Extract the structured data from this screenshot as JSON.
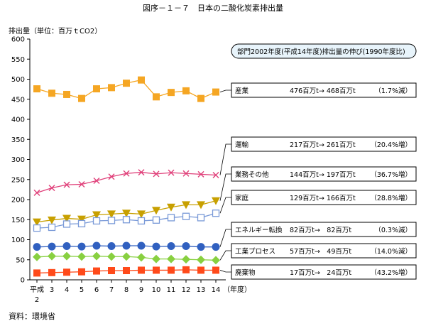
{
  "figure_title": "図序－１－７　日本の二酸化炭素排出量",
  "source_note": "資料：環境省",
  "chart_data": {
    "type": "line",
    "title": "図序－１－７　日本の二酸化炭素排出量",
    "ylabel": "排出量（単位：百万ｔCO2）",
    "xlabel": "（年度）",
    "ylim": [
      0,
      600
    ],
    "yticks": [
      "0",
      "50",
      "100",
      "150",
      "200",
      "250",
      "300",
      "350",
      "400",
      "450",
      "500",
      "550",
      "600"
    ],
    "x": [
      "平成2",
      "3",
      "4",
      "5",
      "6",
      "7",
      "8",
      "9",
      "10",
      "11",
      "12",
      "13",
      "14"
    ],
    "x_tick_labels": [
      {
        "top": "平成",
        "bottom": "2"
      },
      {
        "top": "3",
        "bottom": ""
      },
      {
        "top": "4",
        "bottom": ""
      },
      {
        "top": "5",
        "bottom": ""
      },
      {
        "top": "6",
        "bottom": ""
      },
      {
        "top": "7",
        "bottom": ""
      },
      {
        "top": "8",
        "bottom": ""
      },
      {
        "top": "9",
        "bottom": ""
      },
      {
        "top": "10",
        "bottom": ""
      },
      {
        "top": "11",
        "bottom": ""
      },
      {
        "top": "12",
        "bottom": ""
      },
      {
        "top": "13",
        "bottom": ""
      },
      {
        "top": "14",
        "bottom": ""
      }
    ],
    "grid": false,
    "header_box": "部門2002年度(平成14年度)排出量の伸び(1990年度比)",
    "series": [
      {
        "key": "industry",
        "name": "産業",
        "summary": "476百万t→ 468百万t",
        "change": "（1.7%減）",
        "color": "#f5a623",
        "marker": "square",
        "values": [
          476,
          465,
          462,
          452,
          476,
          479,
          490,
          498,
          456,
          467,
          471,
          452,
          468
        ]
      },
      {
        "key": "transport",
        "name": "運輸",
        "summary": "217百万t→ 261百万t",
        "change": "（20.4%増）",
        "color": "#e0407a",
        "marker": "x",
        "values": [
          217,
          229,
          237,
          238,
          247,
          257,
          265,
          268,
          264,
          267,
          265,
          263,
          261
        ]
      },
      {
        "key": "commercial",
        "name": "業務その他",
        "summary": "144百万t→ 197百万t",
        "change": "（36.7%増）",
        "color": "#c8a000",
        "marker": "triangle-down",
        "values": [
          144,
          149,
          153,
          151,
          162,
          164,
          166,
          164,
          173,
          181,
          187,
          187,
          197
        ]
      },
      {
        "key": "household",
        "name": "家庭",
        "summary": "129百万t→ 166百万t",
        "change": "（28.8%増）",
        "color": "#7a9ad8",
        "marker": "square-open",
        "values": [
          129,
          131,
          139,
          140,
          147,
          148,
          150,
          147,
          149,
          155,
          158,
          155,
          166
        ]
      },
      {
        "key": "energy",
        "name": "エネルギー転換",
        "summary": "82百万t→　82百万t",
        "change": "（0.3%減）",
        "color": "#3060c0",
        "marker": "circle",
        "values": [
          82,
          83,
          84,
          83,
          85,
          84,
          85,
          85,
          83,
          84,
          84,
          82,
          82
        ]
      },
      {
        "key": "process",
        "name": "工業プロセス",
        "summary": "57百万t→　49百万t",
        "change": "（14.0%減）",
        "color": "#88d040",
        "marker": "diamond",
        "values": [
          57,
          59,
          59,
          58,
          59,
          58,
          58,
          56,
          52,
          52,
          51,
          50,
          49
        ]
      },
      {
        "key": "waste",
        "name": "廃棄物",
        "summary": "17百万t→　24百万t",
        "change": "（43.2%増）",
        "color": "#ff4a1a",
        "marker": "square",
        "values": [
          17,
          18,
          19,
          20,
          22,
          23,
          23,
          24,
          24,
          24,
          25,
          24,
          24
        ]
      }
    ]
  }
}
